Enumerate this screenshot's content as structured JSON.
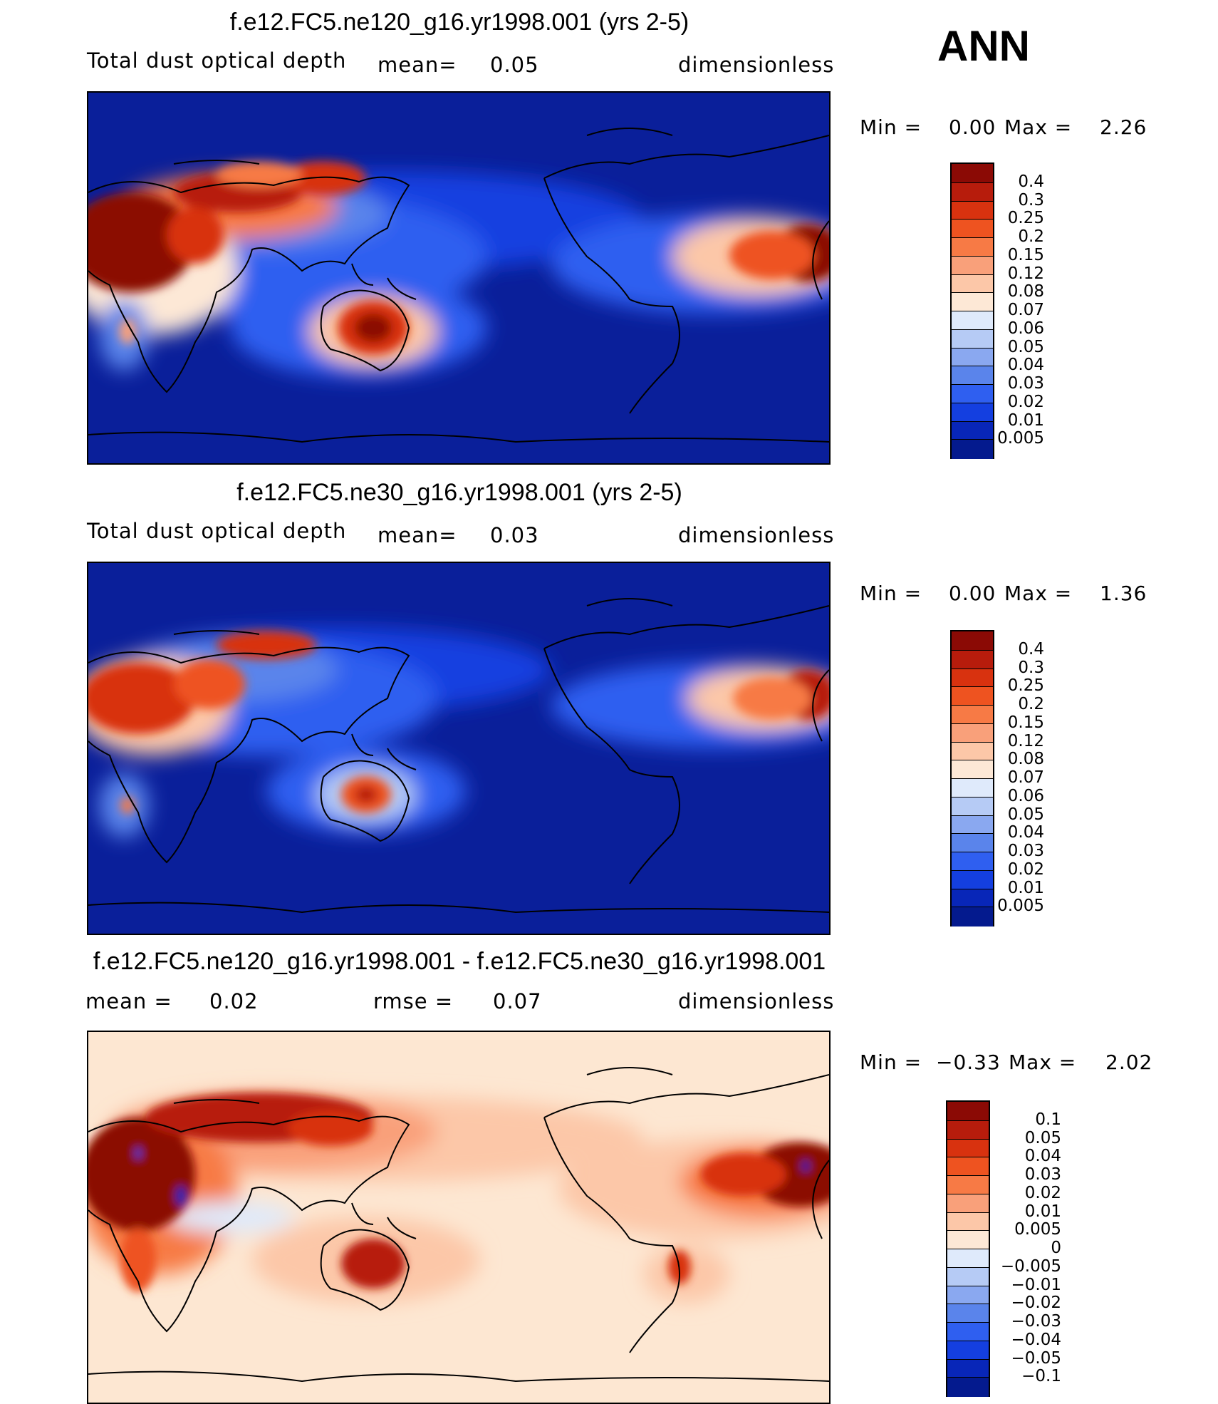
{
  "season_label": "ANN",
  "colors": {
    "ocean_blue": "#0a1f9a",
    "diff_bg": "#fde7d2"
  },
  "panels": [
    {
      "title": "f.e12.FC5.ne120_g16.yr1998.001 (yrs 2-5)",
      "variable": "Total dust optical depth",
      "mean_label": "mean=",
      "mean_value": "0.05",
      "units": "dimensionless",
      "min_label": "Min =",
      "min_value": "0.00",
      "max_label": "Max =",
      "max_value": "2.26",
      "colorbar": {
        "labels": [
          "0.4",
          "0.3",
          "0.25",
          "0.2",
          "0.15",
          "0.12",
          "0.08",
          "0.07",
          "0.06",
          "0.05",
          "0.04",
          "0.03",
          "0.02",
          "0.01",
          "0.005"
        ],
        "colors": [
          "#8b0a05",
          "#b71c0c",
          "#d8320f",
          "#ee5320",
          "#f77a45",
          "#f9a07a",
          "#fcc7a8",
          "#fde8d6",
          "#dfeafb",
          "#b6cbf5",
          "#8aa8f0",
          "#5a84eb",
          "#2f5ff0",
          "#143fe0",
          "#0826b8",
          "#041a8e"
        ]
      }
    },
    {
      "title": "f.e12.FC5.ne30_g16.yr1998.001 (yrs 2-5)",
      "variable": "Total dust optical depth",
      "mean_label": "mean=",
      "mean_value": "0.03",
      "units": "dimensionless",
      "min_label": "Min =",
      "min_value": "0.00",
      "max_label": "Max =",
      "max_value": "1.36",
      "colorbar": {
        "labels": [
          "0.4",
          "0.3",
          "0.25",
          "0.2",
          "0.15",
          "0.12",
          "0.08",
          "0.07",
          "0.06",
          "0.05",
          "0.04",
          "0.03",
          "0.02",
          "0.01",
          "0.005"
        ],
        "colors": [
          "#8b0a05",
          "#b71c0c",
          "#d8320f",
          "#ee5320",
          "#f77a45",
          "#f9a07a",
          "#fcc7a8",
          "#fde8d6",
          "#dfeafb",
          "#b6cbf5",
          "#8aa8f0",
          "#5a84eb",
          "#2f5ff0",
          "#143fe0",
          "#0826b8",
          "#041a8e"
        ]
      }
    },
    {
      "title": "f.e12.FC5.ne120_g16.yr1998.001 - f.e12.FC5.ne30_g16.yr1998.001",
      "mean_label": "mean =",
      "mean_value": "0.02",
      "rmse_label": "rmse =",
      "rmse_value": "0.07",
      "units": "dimensionless",
      "min_label": "Min =",
      "min_value": "−0.33",
      "max_label": "Max =",
      "max_value": "2.02",
      "colorbar": {
        "labels": [
          "0.1",
          "0.05",
          "0.04",
          "0.03",
          "0.02",
          "0.01",
          "0.005",
          "0",
          "−0.005",
          "−0.01",
          "−0.02",
          "−0.03",
          "−0.04",
          "−0.05",
          "−0.1"
        ],
        "colors": [
          "#8b0a05",
          "#b71c0c",
          "#d8320f",
          "#ee5320",
          "#f77a45",
          "#f9a07a",
          "#fcc7a8",
          "#fde8d6",
          "#dfeafb",
          "#b6cbf5",
          "#8aa8f0",
          "#5a84eb",
          "#2f5ff0",
          "#143fe0",
          "#0826b8",
          "#041a8e"
        ]
      }
    }
  ]
}
